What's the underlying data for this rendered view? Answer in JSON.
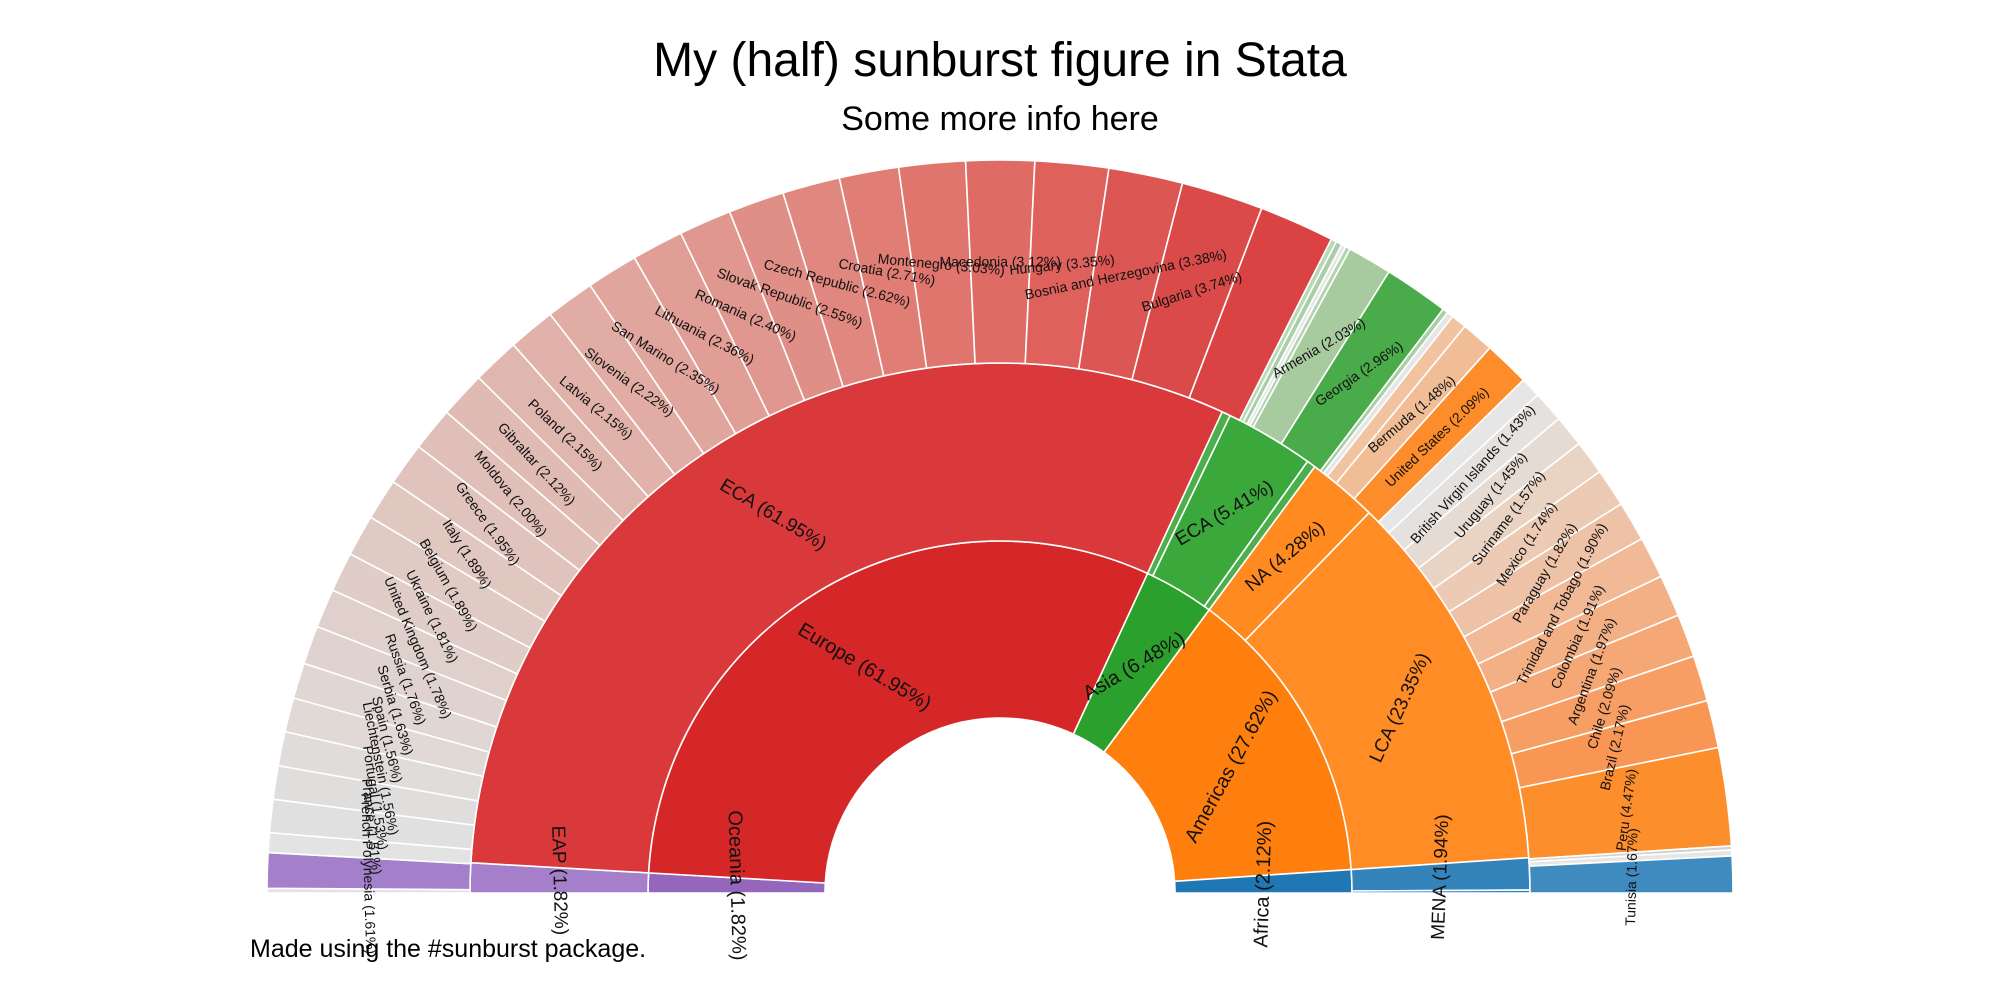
{
  "chart_data": {
    "type": "sunburst",
    "title": "My (half) sunburst figure in Stata",
    "subtitle": "Some more info here",
    "note": "Made using the #sunburst package.",
    "inner_ring": [
      {
        "label": "Oceania (1.82%)",
        "value": 1.82,
        "color": "#9467bd"
      },
      {
        "label": "Europe (61.95%)",
        "value": 61.95,
        "color": "#d62728"
      },
      {
        "label": "Asia (6.48%)",
        "value": 6.48,
        "color": "#2ca02c"
      },
      {
        "label": "Americas (27.62%)",
        "value": 27.62,
        "color": "#ff7f0e"
      },
      {
        "label": "Africa (2.12%)",
        "value": 2.12,
        "color": "#1f77b4"
      }
    ],
    "middle_ring": [
      {
        "label": "EAP (1.82%)",
        "value": 1.82,
        "parent": 0,
        "color": "#a57fc9"
      },
      {
        "label": "ECA (61.95%)",
        "value": 61.95,
        "parent": 1,
        "color": "#d9393b"
      },
      {
        "label": "",
        "value": 0.53,
        "parent": 2,
        "color": "#4cae4c"
      },
      {
        "label": "ECA (5.41%)",
        "value": 5.41,
        "parent": 2,
        "color": "#3ba83b"
      },
      {
        "label": "",
        "value": 0.54,
        "parent": 2,
        "color": "#4cae4c"
      },
      {
        "label": "NA (4.28%)",
        "value": 4.28,
        "parent": 3,
        "color": "#ff8a1f"
      },
      {
        "label": "LCA (23.35%)",
        "value": 23.35,
        "parent": 3,
        "color": "#ff8c24"
      },
      {
        "label": "MENA (1.94%)",
        "value": 1.94,
        "parent": 4,
        "color": "#3483bb"
      },
      {
        "label": "",
        "value": 0.18,
        "parent": 4,
        "color": "#3483bb"
      }
    ],
    "outer_ring": [
      {
        "label": "",
        "value": 0.21,
        "color": "#e6dff0"
      },
      {
        "label": "French Polynesia (1.61%)",
        "value": 1.61,
        "color": "#a47fca"
      },
      {
        "label": "",
        "value": 0.9,
        "color": "#e3e3e3"
      },
      {
        "label": "France (1.51%)",
        "value": 1.51,
        "color": "#e0e0e0"
      },
      {
        "label": "Portugal (1.53%)",
        "value": 1.53,
        "color": "#e0dedd"
      },
      {
        "label": "Liechtenstein (1.56%)",
        "value": 1.56,
        "color": "#e0dcda"
      },
      {
        "label": "Spain (1.56%)",
        "value": 1.56,
        "color": "#e0d9d6"
      },
      {
        "label": "Serbia (1.63%)",
        "value": 1.63,
        "color": "#e0d6d3"
      },
      {
        "label": "Russia (1.76%)",
        "value": 1.76,
        "color": "#e0d3cf"
      },
      {
        "label": "United Kingdom (1.78%)",
        "value": 1.78,
        "color": "#e0d0cb"
      },
      {
        "label": "Ukraine (1.81%)",
        "value": 1.81,
        "color": "#e0cdc8"
      },
      {
        "label": "Belgium (1.89%)",
        "value": 1.89,
        "color": "#e0cac4"
      },
      {
        "label": "Italy (1.89%)",
        "value": 1.89,
        "color": "#e0c7c0"
      },
      {
        "label": "Greece (1.95%)",
        "value": 1.95,
        "color": "#e0c3bc"
      },
      {
        "label": "Moldova (2.00%)",
        "value": 2.0,
        "color": "#e0bfb8"
      },
      {
        "label": "Gibraltar (2.12%)",
        "value": 2.12,
        "color": "#e0bbb3"
      },
      {
        "label": "Poland (2.15%)",
        "value": 2.15,
        "color": "#e0b7af"
      },
      {
        "label": "Latvia (2.15%)",
        "value": 2.15,
        "color": "#e0b2aa"
      },
      {
        "label": "Slovenia (2.22%)",
        "value": 2.22,
        "color": "#e0aca4"
      },
      {
        "label": "San Marino (2.35%)",
        "value": 2.35,
        "color": "#e0a59d"
      },
      {
        "label": "Lithuania (2.36%)",
        "value": 2.36,
        "color": "#e09e96"
      },
      {
        "label": "Romania (2.40%)",
        "value": 2.4,
        "color": "#e0978f"
      },
      {
        "label": "Slovak Republic (2.55%)",
        "value": 2.55,
        "color": "#e08f87"
      },
      {
        "label": "Czech Republic (2.62%)",
        "value": 2.62,
        "color": "#e0877f"
      },
      {
        "label": "Croatia (2.71%)",
        "value": 2.71,
        "color": "#e07e76"
      },
      {
        "label": "Montenegro (3.03%)",
        "value": 3.03,
        "color": "#e0756e"
      },
      {
        "label": "Macedonia (3.12%)",
        "value": 3.12,
        "color": "#df6b65"
      },
      {
        "label": "Hungary (3.35%)",
        "value": 3.35,
        "color": "#de615c"
      },
      {
        "label": "Bosnia and Herzegovina (3.38%)",
        "value": 3.38,
        "color": "#dc5753"
      },
      {
        "label": "Bulgaria (3.74%)",
        "value": 3.74,
        "color": "#da4a49"
      },
      {
        "label": "",
        "value": 3.43,
        "color": "#da4244"
      },
      {
        "label": "",
        "value": 0.25,
        "color": "#b9d8b7"
      },
      {
        "label": "",
        "value": 0.28,
        "color": "#a9cfa6"
      },
      {
        "label": "",
        "value": 0.2,
        "color": "#e6e6e6"
      },
      {
        "label": "",
        "value": 0.22,
        "color": "#b3d4b1"
      },
      {
        "label": "Armenia (2.03%)",
        "value": 2.03,
        "color": "#a7ca9f"
      },
      {
        "label": "Georgia (2.96%)",
        "value": 2.96,
        "color": "#4aab4a"
      },
      {
        "label": "",
        "value": 0.25,
        "color": "#a9cfa6"
      },
      {
        "label": "",
        "value": 0.29,
        "color": "#e6e6e6"
      },
      {
        "label": "",
        "value": 0.71,
        "color": "#f2c3a0"
      },
      {
        "label": "Bermuda (1.48%)",
        "value": 1.48,
        "color": "#f0bd97"
      },
      {
        "label": "United States (2.09%)",
        "value": 2.09,
        "color": "#fd8d2a"
      },
      {
        "label": "",
        "value": 0.93,
        "color": "#e6e6e6"
      },
      {
        "label": "British Virgin Islands (1.43%)",
        "value": 1.43,
        "color": "#e4e1de"
      },
      {
        "label": "Uruguay (1.45%)",
        "value": 1.45,
        "color": "#e6dbd2"
      },
      {
        "label": "Suriname (1.57%)",
        "value": 1.57,
        "color": "#e9d3c3"
      },
      {
        "label": "Mexico (1.74%)",
        "value": 1.74,
        "color": "#eccab4"
      },
      {
        "label": "Paraguay (1.82%)",
        "value": 1.82,
        "color": "#eec2a6"
      },
      {
        "label": "Trinidad and Tobago (1.90%)",
        "value": 1.9,
        "color": "#f1b995"
      },
      {
        "label": "Colombia (1.91%)",
        "value": 1.91,
        "color": "#f3b085"
      },
      {
        "label": "Argentina (1.97%)",
        "value": 1.97,
        "color": "#f5a775"
      },
      {
        "label": "Chile (2.09%)",
        "value": 2.09,
        "color": "#f79e65"
      },
      {
        "label": "Brazil (2.17%)",
        "value": 2.17,
        "color": "#f99653"
      },
      {
        "label": "Peru (4.47%)",
        "value": 4.47,
        "color": "#fd8e2c"
      },
      {
        "label": "",
        "value": 0.18,
        "color": "#d2d2d2"
      },
      {
        "label": "",
        "value": 0.27,
        "color": "#e6e6e6"
      },
      {
        "label": "Tunisia (1.67%)",
        "value": 1.67,
        "color": "#3f8bc0"
      }
    ]
  }
}
